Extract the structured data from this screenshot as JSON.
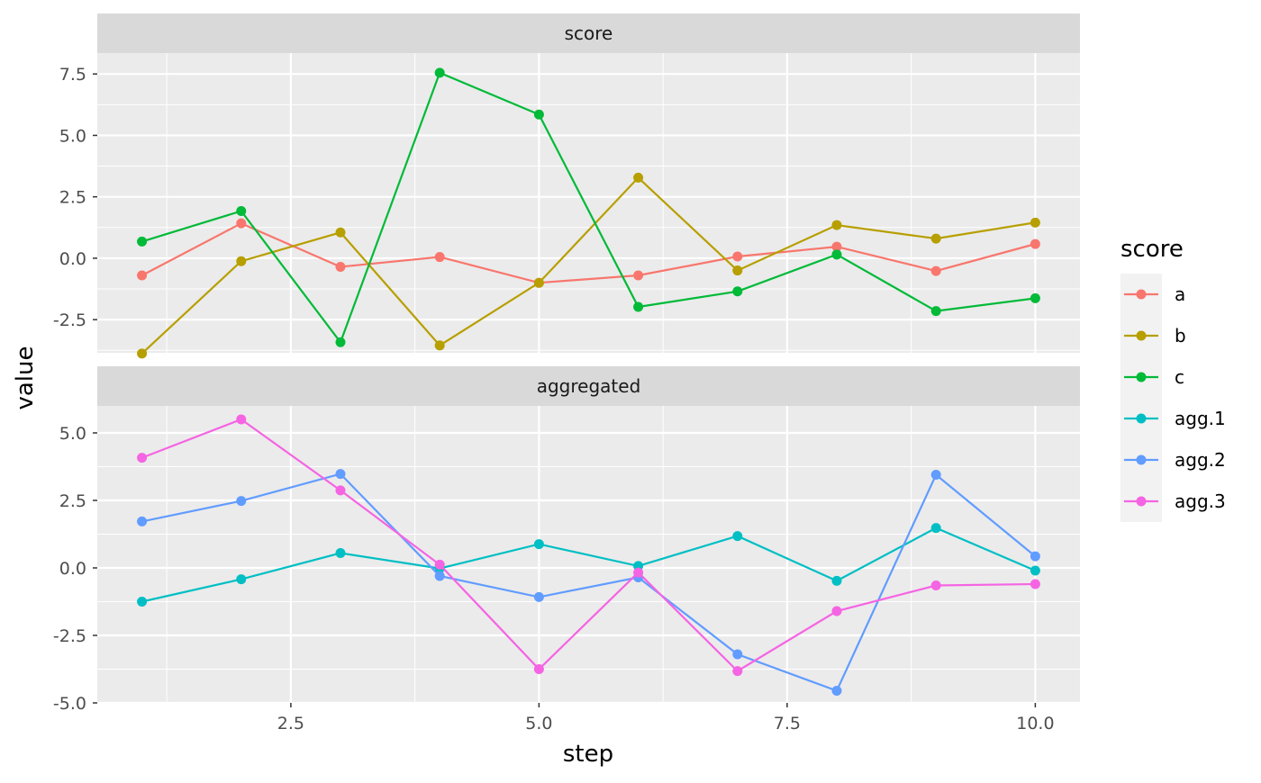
{
  "chart_data": {
    "type": "line",
    "xlabel": "step",
    "ylabel": "value",
    "xlim": [
      0.55,
      10.45
    ],
    "x_ticks": [
      2.5,
      5.0,
      7.5,
      10.0
    ],
    "x_tick_labels": [
      "2.5",
      "5.0",
      "7.5",
      "10.0"
    ],
    "grid": true,
    "legend": {
      "title": "score",
      "position": "right",
      "entries": [
        "a",
        "b",
        "c",
        "agg.1",
        "agg.2",
        "agg.3"
      ]
    },
    "colors": {
      "a": "#F8766D",
      "b": "#B79F00",
      "c": "#00BA38",
      "agg.1": "#00BFC4",
      "agg.2": "#619CFF",
      "agg.3": "#F564E3"
    },
    "panels": [
      {
        "strip": "score",
        "ylim": [
          -3.85,
          8.35
        ],
        "y_ticks": [
          -2.5,
          0.0,
          2.5,
          5.0,
          7.5
        ],
        "y_tick_labels": [
          "-2.5",
          "0.0",
          "2.5",
          "5.0",
          "7.5"
        ],
        "x": [
          1,
          2,
          3,
          4,
          5,
          6,
          7,
          8,
          9,
          10
        ],
        "series": [
          {
            "name": "a",
            "values": [
              -0.7,
              1.42,
              -0.35,
              0.05,
              -1.0,
              -0.7,
              0.07,
              0.47,
              -0.52,
              0.58
            ]
          },
          {
            "name": "b",
            "values": [
              -3.88,
              -0.12,
              1.05,
              -3.55,
              -1.0,
              3.28,
              -0.5,
              1.35,
              0.8,
              1.45
            ]
          },
          {
            "name": "c",
            "values": [
              0.68,
              1.92,
              -3.42,
              7.55,
              5.85,
              -1.98,
              -1.35,
              0.15,
              -2.15,
              -1.63
            ]
          }
        ]
      },
      {
        "strip": "aggregated",
        "ylim": [
          -5.0,
          6.0
        ],
        "y_ticks": [
          -5.0,
          -2.5,
          0.0,
          2.5,
          5.0
        ],
        "y_tick_labels": [
          "-5.0",
          "-2.5",
          "0.0",
          "2.5",
          "5.0"
        ],
        "x": [
          1,
          2,
          3,
          4,
          5,
          6,
          7,
          8,
          9,
          10
        ],
        "series": [
          {
            "name": "agg.1",
            "values": [
              -1.25,
              -0.42,
              0.55,
              -0.02,
              0.88,
              0.07,
              1.18,
              -0.48,
              1.48,
              -0.1
            ]
          },
          {
            "name": "agg.2",
            "values": [
              1.72,
              2.48,
              3.48,
              -0.3,
              -1.08,
              -0.35,
              -3.2,
              -4.55,
              3.45,
              0.43
            ]
          },
          {
            "name": "agg.3",
            "values": [
              4.08,
              5.5,
              2.87,
              0.12,
              -3.75,
              -0.17,
              -3.82,
              -1.6,
              -0.65,
              -0.6
            ]
          }
        ]
      }
    ]
  }
}
